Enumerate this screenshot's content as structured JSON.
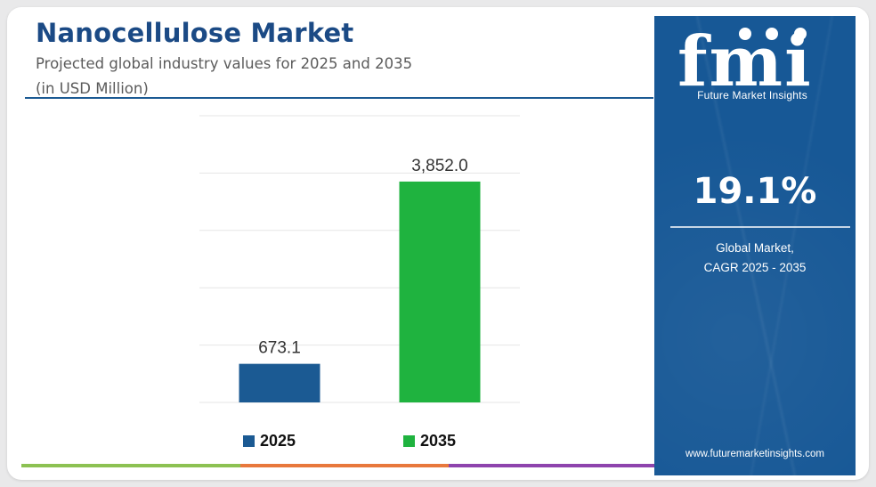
{
  "header": {
    "title": "Nanocellulose Market",
    "subtitle": "Projected global industry values for 2025 and 2035",
    "unit_note": "(in USD Million)"
  },
  "side_panel": {
    "logo_text": "fmi",
    "brand_name": "Future Market Insights",
    "cagr_value": "19.1%",
    "cagr_label_line1": "Global Market,",
    "cagr_label_line2": "CAGR 2025 - 2035",
    "website": "www.futuremarketinsights.com",
    "background_color": "#175896"
  },
  "colors": {
    "title": "#1b4a85",
    "bar_2025": "#1b5a93",
    "bar_2035": "#1fb33f",
    "accent_green": "#8cc152",
    "accent_orange": "#e8783c",
    "accent_purple": "#8e44ad"
  },
  "chart_data": {
    "type": "bar",
    "categories": [
      "2025",
      "2035"
    ],
    "values": [
      673.1,
      3852.0
    ],
    "value_labels": [
      "673.1",
      "3,852.0"
    ],
    "colors": [
      "#1b5a93",
      "#1fb33f"
    ],
    "legend": [
      "2025",
      "2035"
    ],
    "legend_position": "bottom",
    "ylim": [
      0,
      5000
    ],
    "grid": true,
    "xlabel": "",
    "ylabel": ""
  }
}
